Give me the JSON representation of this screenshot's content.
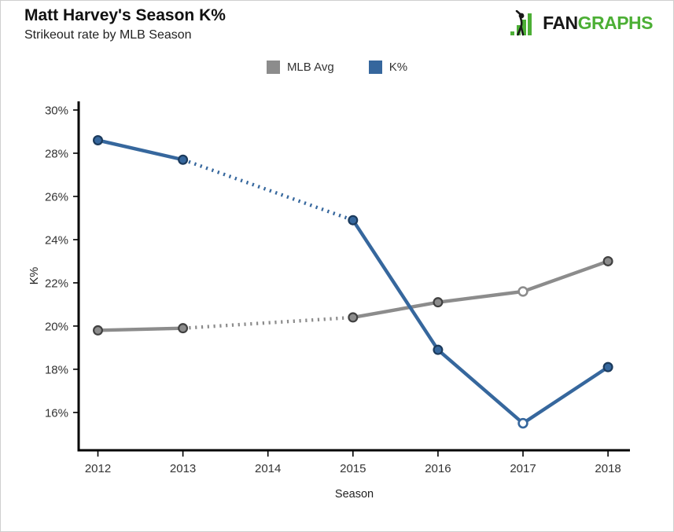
{
  "header": {
    "title": "Matt Harvey's Season K%",
    "subtitle": "Strikeout rate by MLB Season"
  },
  "logo": {
    "black": "FAN",
    "green": "GRAPHS",
    "green_color": "#4caf35"
  },
  "chart_data": {
    "type": "line",
    "title": "Matt Harvey's Season K%",
    "subtitle": "Strikeout rate by MLB Season",
    "xlabel": "Season",
    "ylabel": "K%",
    "categories": [
      2012,
      2013,
      2014,
      2015,
      2016,
      2017,
      2018
    ],
    "y_ticks_percent": [
      16,
      18,
      20,
      22,
      24,
      26,
      28,
      30
    ],
    "ylim": [
      14.25,
      30.4
    ],
    "grid": false,
    "legend_position": "top-center",
    "missing_season": 2014,
    "gap_note": "no 2014 data; dotted interpolated segment connects 2013 to 2015",
    "open_marker_year": 2017,
    "series": [
      {
        "name": "MLB Avg",
        "color": "#8C8C8C",
        "marker_stroke": "#404040",
        "values": [
          19.8,
          19.9,
          null,
          20.4,
          21.1,
          21.6,
          23.0
        ]
      },
      {
        "name": "K%",
        "color": "#36679D",
        "marker_stroke": "#1B3A5C",
        "values": [
          28.6,
          27.7,
          null,
          24.9,
          18.9,
          15.5,
          18.1
        ]
      }
    ]
  }
}
